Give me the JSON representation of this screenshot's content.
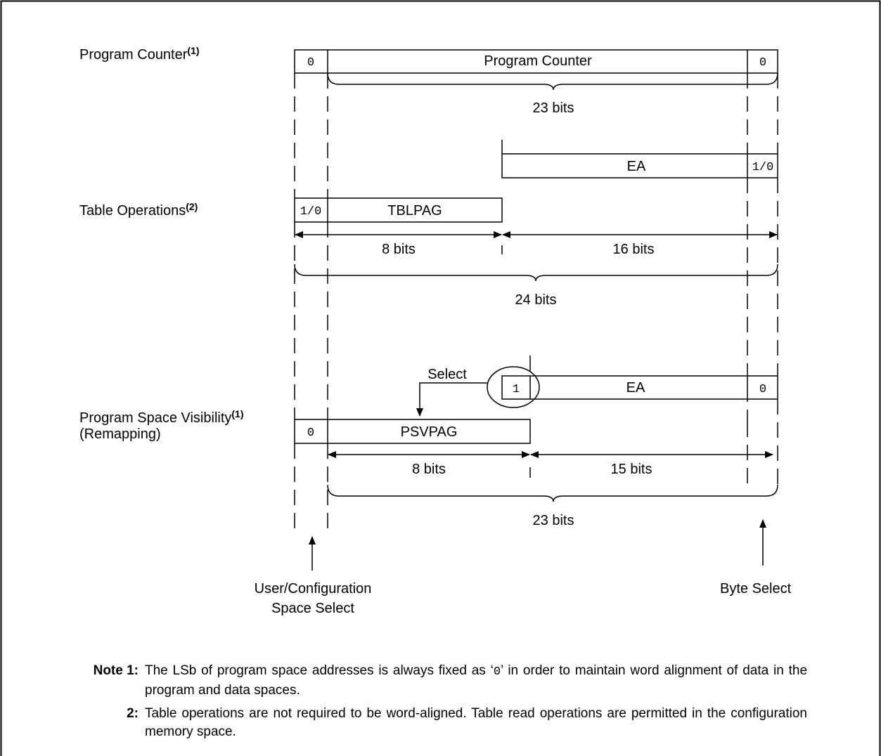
{
  "rows": {
    "program_counter": {
      "label": "Program Counter",
      "superscript": "(1)"
    },
    "table_operations": {
      "label": "Table Operations",
      "superscript": "(2)"
    },
    "psv": {
      "label": "Program Space Visibility",
      "superscript": "(1)",
      "sublabel": "(Remapping)"
    }
  },
  "fields": {
    "pc_lsb_left": "0",
    "pc_main": "Program Counter",
    "pc_lsb_right": "0",
    "pc_width": "23 bits",
    "ea_table": "EA",
    "ea_table_lsb": "1/0",
    "table_msb": "1/0",
    "tblpag": "TBLPAG",
    "tbl_left_width": "8 bits",
    "tbl_right_width": "16 bits",
    "tbl_total_width": "24 bits",
    "select_label": "Select",
    "psv_ea_msb": "1",
    "psv_ea": "EA",
    "psv_ea_lsb": "0",
    "psv_msb": "0",
    "psvpag": "PSVPAG",
    "psv_left_width": "8 bits",
    "psv_right_width": "15 bits",
    "psv_total_width": "23 bits"
  },
  "bottom_labels": {
    "user_config_line1": "User/Configuration",
    "user_config_line2": "Space Select",
    "byte_select": "Byte Select"
  },
  "notes": {
    "note1_key": "Note 1:",
    "note1_text_a": "The LSb of program space addresses is always fixed as ‘",
    "note1_text_code": "0",
    "note1_text_b": "’ in order to maintain word alignment of data in the program and data spaces.",
    "note2_key": "2:",
    "note2_text": "Table operations are not required to be word-aligned. Table read operations are permitted in the configuration memory space."
  }
}
